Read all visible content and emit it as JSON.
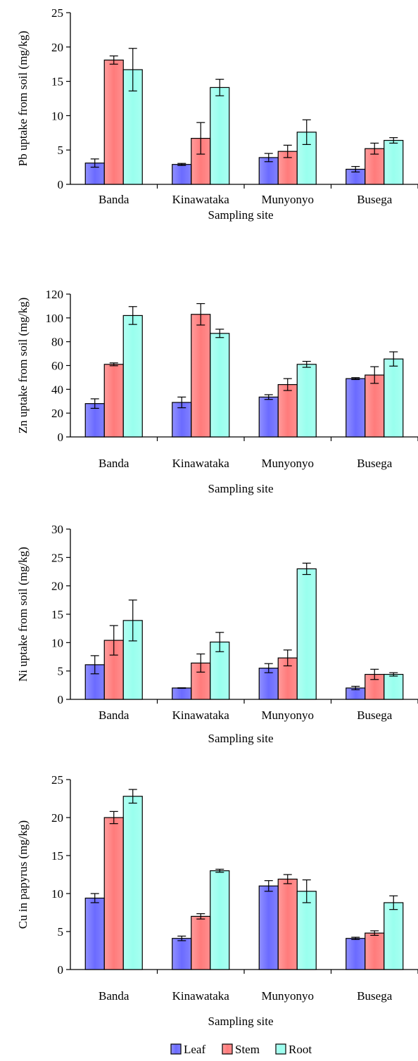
{
  "legend": [
    {
      "name": "Leaf",
      "color": "#6b6bff"
    },
    {
      "name": "Stem",
      "color": "#ff7b7b"
    },
    {
      "name": "Root",
      "color": "#99ffee"
    }
  ],
  "chart_data": [
    {
      "type": "bar",
      "categories": [
        "Banda",
        "Kinawataka",
        "Munyonyo",
        "Busega"
      ],
      "xlabel": "Sampling site",
      "ylabel": "Pb uptake from soil (mg/kg)",
      "ylim": [
        0,
        25
      ],
      "yticks": [
        0,
        5,
        10,
        15,
        20,
        25
      ],
      "grid": false,
      "series": [
        {
          "name": "Leaf",
          "values": [
            3.1,
            2.9,
            3.9,
            2.2
          ],
          "errors": [
            0.6,
            0.15,
            0.6,
            0.4
          ]
        },
        {
          "name": "Stem",
          "values": [
            18.1,
            6.7,
            4.8,
            5.2
          ],
          "errors": [
            0.6,
            2.3,
            0.9,
            0.8
          ]
        },
        {
          "name": "Root",
          "values": [
            16.7,
            14.1,
            7.6,
            6.4
          ],
          "errors": [
            3.1,
            1.2,
            1.8,
            0.4
          ]
        }
      ]
    },
    {
      "type": "bar",
      "categories": [
        "Banda",
        "Kinawataka",
        "Munyonyo",
        "Busega"
      ],
      "xlabel": "Sampling site",
      "ylabel": "Zn uptake from soil (mg/kg)",
      "ylim": [
        0,
        120
      ],
      "yticks": [
        0,
        20,
        40,
        60,
        80,
        100,
        120
      ],
      "grid": false,
      "series": [
        {
          "name": "Leaf",
          "values": [
            28,
            29,
            33.5,
            49
          ],
          "errors": [
            4,
            4.5,
            2,
            0.8
          ]
        },
        {
          "name": "Stem",
          "values": [
            61,
            103,
            44,
            52
          ],
          "errors": [
            1.2,
            9,
            5,
            7
          ]
        },
        {
          "name": "Root",
          "values": [
            102,
            87,
            61,
            65.5
          ],
          "errors": [
            7.5,
            3.5,
            2.5,
            6
          ]
        }
      ]
    },
    {
      "type": "bar",
      "categories": [
        "Banda",
        "Kinawataka",
        "Munyonyo",
        "Busega"
      ],
      "xlabel": "Sampling site",
      "ylabel": "Ni uptake from soil (mg/kg)",
      "ylim": [
        0,
        30
      ],
      "yticks": [
        0,
        5,
        10,
        15,
        20,
        25,
        30
      ],
      "grid": false,
      "series": [
        {
          "name": "Leaf",
          "values": [
            6.1,
            2.0,
            5.5,
            2.0
          ],
          "errors": [
            1.6,
            0.05,
            0.8,
            0.3
          ]
        },
        {
          "name": "Stem",
          "values": [
            10.4,
            6.4,
            7.3,
            4.4
          ],
          "errors": [
            2.6,
            1.6,
            1.4,
            0.9
          ]
        },
        {
          "name": "Root",
          "values": [
            13.9,
            10.1,
            23.0,
            4.4
          ],
          "errors": [
            3.6,
            1.7,
            1.0,
            0.3
          ]
        }
      ]
    },
    {
      "type": "bar",
      "categories": [
        "Banda",
        "Kinawataka",
        "Munyonyo",
        "Busega"
      ],
      "xlabel": "Sampling site",
      "ylabel": "Cu in papyrus (mg/kg)",
      "ylim": [
        0,
        25
      ],
      "yticks": [
        0,
        5,
        10,
        15,
        20,
        25
      ],
      "grid": false,
      "series": [
        {
          "name": "Leaf",
          "values": [
            9.4,
            4.1,
            11.0,
            4.1
          ],
          "errors": [
            0.6,
            0.3,
            0.7,
            0.15
          ]
        },
        {
          "name": "Stem",
          "values": [
            20.0,
            7.0,
            11.9,
            4.8
          ],
          "errors": [
            0.8,
            0.35,
            0.6,
            0.3
          ]
        },
        {
          "name": "Root",
          "values": [
            22.8,
            13.0,
            10.3,
            8.8
          ],
          "errors": [
            0.9,
            0.2,
            1.5,
            0.9
          ]
        }
      ]
    }
  ]
}
